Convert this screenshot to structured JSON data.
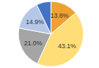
{
  "chart_data": {
    "type": "pie",
    "categories": [
      null,
      null,
      null,
      null,
      null
    ],
    "values": [
      13.8,
      43.1,
      21.0,
      14.9,
      7.2
    ],
    "value_labels": [
      "13.8%",
      "43.1%",
      "21.0%",
      "14.9%",
      null
    ],
    "colors": [
      "#f0a030",
      "#ffdd77",
      "#a5a5a5",
      "#b4c7e7",
      "#4472c4"
    ],
    "data_labels": true
  }
}
